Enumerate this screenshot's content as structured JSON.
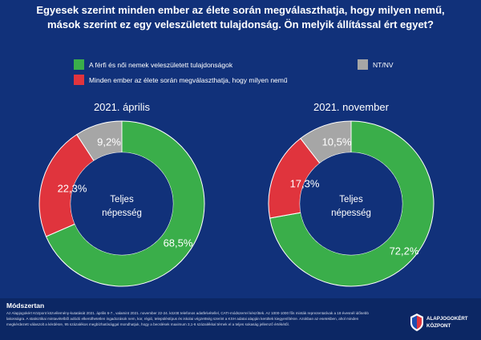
{
  "title": {
    "line1": "Egyesek szerint minden ember az élete során megválaszthatja, hogy milyen nemű,",
    "line2": "mások szerint ez egy veleszületett tulajdonság. Ön melyik állítással ért egyet?"
  },
  "legend": [
    {
      "label": "A férfi és női nemek veleszületett tulajdonságok",
      "color": "#3aae4a"
    },
    {
      "label": "Minden ember az élete során megválaszthatja, hogy milyen nemű",
      "color": "#e0343d"
    },
    {
      "label": "NT/NV",
      "color": "#a6a6a6"
    }
  ],
  "chart_data": [
    {
      "type": "pie",
      "variant": "donut",
      "title": "2021. április",
      "center_label": [
        "Teljes",
        "népesség"
      ],
      "slices": [
        {
          "label": "A férfi és női nemek veleszületett tulajdonságok",
          "value": 68.5,
          "text": "68,5%",
          "color": "#3aae4a"
        },
        {
          "label": "Minden ember az élete során megválaszthatja, hogy milyen nemű",
          "value": 22.3,
          "text": "22,3%",
          "color": "#e0343d"
        },
        {
          "label": "NT/NV",
          "value": 9.2,
          "text": "9,2%",
          "color": "#a6a6a6"
        }
      ]
    },
    {
      "type": "pie",
      "variant": "donut",
      "title": "2021. november",
      "center_label": [
        "Teljes",
        "népesség"
      ],
      "slices": [
        {
          "label": "A férfi és női nemek veleszületett tulajdonságok",
          "value": 72.2,
          "text": "72,2%",
          "color": "#3aae4a"
        },
        {
          "label": "Minden ember az élete során megválaszthatja, hogy milyen nemű",
          "value": 17.3,
          "text": "17,3%",
          "color": "#e0343d"
        },
        {
          "label": "NT/NV",
          "value": 10.5,
          "text": "10,5%",
          "color": "#a6a6a6"
        }
      ]
    }
  ],
  "footer": {
    "heading": "Módszertan",
    "text": "Az Alapjogokért Központ közvélemény-kutatását 2021. április 6-7., valamint 2021. november 22-24. között telefonos adatfelvétellel, CATI-módszerrel készíttek. Az 1000-1000 fős minták reprezentatívak a 18 évesnél idősebb lakosságra. A statisztikai mintavételből adódó elkerülhetetlen ingadozások nem, kor, régió, településtípus és iskolai végzettség szerint a KSH adatai alapján kerültek kiegyenlítésre. Azokban az esetekben, ahol minden megkérdezett válaszolt a kérdésre, 95 százalékos megbízhatósággal mondhatjuk, hogy a becslések maximum 3,1-6 százalékkal térnek el a teljes sokaság jellemző értékétől.",
    "logo_line1": "ALAPJOGOKÉRT",
    "logo_line2": "KÖZPONT"
  },
  "colors": {
    "background": "#11317a",
    "footer": "#0c2764",
    "donut_inner": "#11317a"
  }
}
